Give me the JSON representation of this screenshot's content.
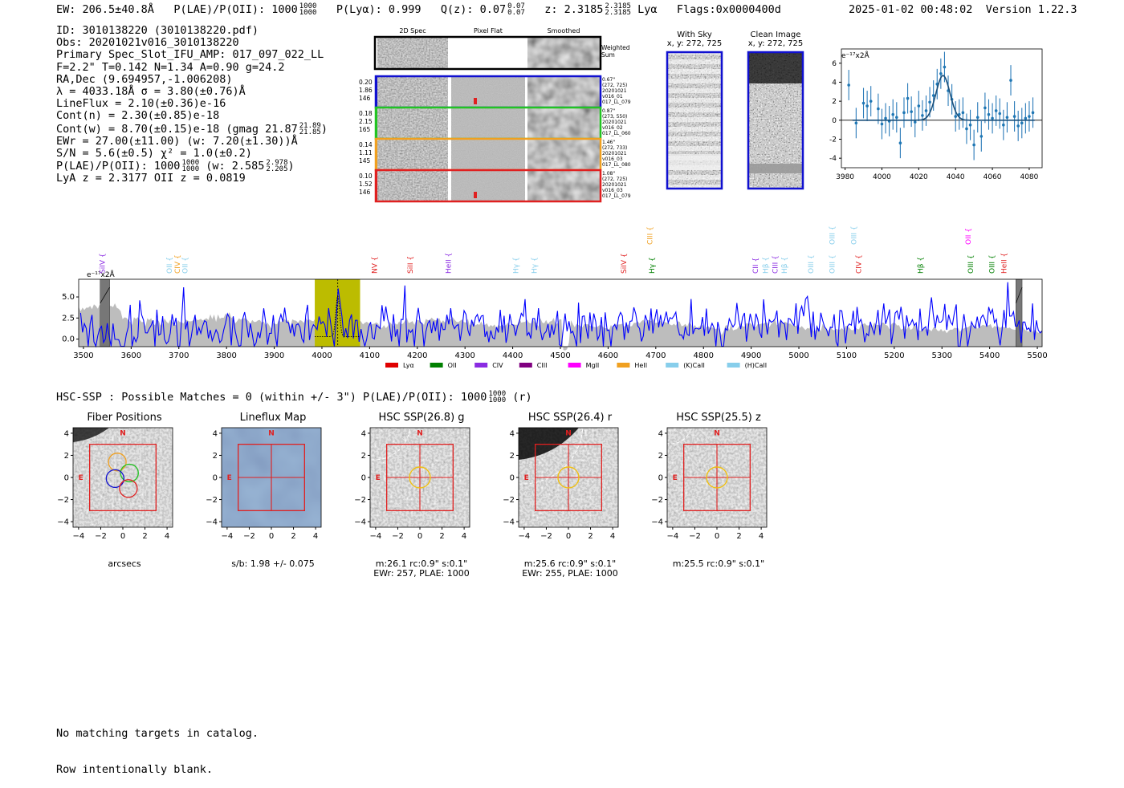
{
  "header": {
    "ew": "EW: 206.5±40.8Å",
    "plae_label": "P(LAE)/P(OII): 1000",
    "plae_sup_hi": "1000",
    "plae_sup_lo": "1000",
    "plya": "P(Lyα): 0.999",
    "qz_label": "Q(z): 0.07",
    "qz_sup_hi": "0.07",
    "qz_sup_lo": "0.07",
    "z_label": "z: 2.3185",
    "z_sup_hi": "2.3185",
    "z_sup_lo": "2.3185",
    "line": "Lyα",
    "flags": "Flags:0x0000400d",
    "timestamp": "2025-01-02 00:48:02",
    "version": "Version 1.22.3"
  },
  "info": {
    "id": "ID: 3010138220 (3010138220.pdf)",
    "obs": "Obs: 20201021v016_3010138220",
    "primary": "Primary Spec_Slot_IFU_AMP: 017_097_022_LL",
    "fit": "F=2.2\"  T=0.142  N=1.34  A=0.90  g=24.2",
    "radec": "RA,Dec (9.694957,-1.006208)",
    "lambda": "λ = 4033.18Å  σ = 3.80(±0.76)Å",
    "lineflux": "LineFlux = 2.10(±0.36)e-16",
    "contn": "Cont(n) = 2.30(±0.85)e-18",
    "contw": "Cont(w) = 8.70(±0.15)e-18 (gmag 21.87",
    "contw_hi": "21.89",
    "contw_lo": "21.85",
    "contw_end": ")",
    "ewr": "EWr = 27.00(±11.00) (w: 7.20(±1.30))Å",
    "sn": "S/N = 5.6(±0.5)  χ² = 1.0(±0.2)",
    "plae": "P(LAE)/P(OII): 1000",
    "plae_hi": "1000",
    "plae_lo": "1000",
    "plae_w": "(w: 2.585",
    "plae_w_hi": "2.978",
    "plae_w_lo": "2.205",
    "plae_end": ")",
    "lyaz": "LyA z = 2.3177  OII z = 0.0819"
  },
  "stamps": {
    "col_2d": "2D Spec",
    "col_flat": "Pixel Flat",
    "col_smooth": "Smoothed",
    "weighted": "Weighted Sum",
    "rows": [
      {
        "color": "#1010d0",
        "left": [
          "0.20",
          "1.86",
          "146"
        ],
        "right": [
          "0.67\"",
          "(272, 725)",
          "20201021",
          "v016_01",
          "017_LL_079"
        ]
      },
      {
        "color": "#22c422",
        "left": [
          "0.18",
          "2.15",
          "165"
        ],
        "right": [
          "0.87\"",
          "(273, 550)",
          "20201021",
          "v016_02",
          "017_LL_060"
        ]
      },
      {
        "color": "#f0a020",
        "left": [
          "0.14",
          "1.11",
          "145"
        ],
        "right": [
          "1.46\"",
          "(272, 733)",
          "20201021",
          "v016_03",
          "017_LL_080"
        ]
      },
      {
        "color": "#e02020",
        "left": [
          "0.10",
          "1.52",
          "146"
        ],
        "right": [
          "1.08\"",
          "(272, 725)",
          "20201021",
          "v016_03",
          "017_LL_079"
        ]
      }
    ]
  },
  "cutouts": {
    "with_sky": "With Sky",
    "with_sky_xy": "x, y: 272, 725",
    "clean": "Clean Image",
    "clean_xy": "x, y: 272, 725"
  },
  "zoom_plot": {
    "unit": "e⁻¹⁷x2Å"
  },
  "spectrum": {
    "unit": "e⁻¹⁷x2Å",
    "line_labels": [
      {
        "text": "SiIV",
        "wl": 3545,
        "color": "#8a2be2",
        "row": 1
      },
      {
        "text": "OII",
        "wl": 3685,
        "color": "#87ceeb",
        "row": 1
      },
      {
        "text": "CIV",
        "wl": 3702,
        "color": "#f0a020",
        "row": 1
      },
      {
        "text": "OII",
        "wl": 3718,
        "color": "#87ceeb",
        "row": 1
      },
      {
        "text": "NV",
        "wl": 4115,
        "color": "#e02020",
        "row": 1
      },
      {
        "text": "SiII",
        "wl": 4190,
        "color": "#e02020",
        "row": 1
      },
      {
        "text": "HeII",
        "wl": 4270,
        "color": "#8a2be2",
        "row": 1
      },
      {
        "text": "Hγ",
        "wl": 4412,
        "color": "#87ceeb",
        "row": 1
      },
      {
        "text": "Hγ",
        "wl": 4450,
        "color": "#87ceeb",
        "row": 1
      },
      {
        "text": "SiIV",
        "wl": 4638,
        "color": "#e02020",
        "row": 1
      },
      {
        "text": "CIII",
        "wl": 4693,
        "color": "#f0a020",
        "row": 0
      },
      {
        "text": "Hγ",
        "wl": 4697,
        "color": "#008000",
        "row": 1
      },
      {
        "text": "CII",
        "wl": 4914,
        "color": "#8a2be2",
        "row": 1
      },
      {
        "text": "Hβ",
        "wl": 4935,
        "color": "#87ceeb",
        "row": 1
      },
      {
        "text": "CIII",
        "wl": 4955,
        "color": "#8a2be2",
        "row": 1
      },
      {
        "text": "Hβ",
        "wl": 4975,
        "color": "#87ceeb",
        "row": 1
      },
      {
        "text": "OIII",
        "wl": 5030,
        "color": "#87ceeb",
        "row": 1
      },
      {
        "text": "OIII",
        "wl": 5075,
        "color": "#87ceeb",
        "row": 0
      },
      {
        "text": "OIII",
        "wl": 5075,
        "color": "#87ceeb",
        "row": 1
      },
      {
        "text": "OIII",
        "wl": 5120,
        "color": "#87ceeb",
        "row": 0
      },
      {
        "text": "CIV",
        "wl": 5130,
        "color": "#e02020",
        "row": 1
      },
      {
        "text": "Hβ",
        "wl": 5260,
        "color": "#008000",
        "row": 1
      },
      {
        "text": "OII",
        "wl": 5360,
        "color": "#ff00ff",
        "row": 0
      },
      {
        "text": "OIII",
        "wl": 5365,
        "color": "#008000",
        "row": 1
      },
      {
        "text": "OIII",
        "wl": 5410,
        "color": "#008000",
        "row": 1
      },
      {
        "text": "HeII",
        "wl": 5435,
        "color": "#e02020",
        "row": 1
      }
    ],
    "legend": [
      {
        "label": "Lyα",
        "color": "#e00000"
      },
      {
        "label": "OII",
        "color": "#008000"
      },
      {
        "label": "CIV",
        "color": "#8a2be2"
      },
      {
        "label": "CIII",
        "color": "#800080"
      },
      {
        "label": "MgII",
        "color": "#ff00ff"
      },
      {
        "label": "HeII",
        "color": "#f0a020"
      },
      {
        "label": "(K)CaII",
        "color": "#87ceeb"
      },
      {
        "label": "(H)CaII",
        "color": "#87ceeb"
      }
    ]
  },
  "hsc": {
    "summary": "HSC-SSP : Possible Matches = 0 (within +/- 3\")  P(LAE)/P(OII): 1000",
    "summary_hi": "1000",
    "summary_lo": "1000",
    "summary_end": "(r)",
    "panels": [
      {
        "title": "Fiber Positions",
        "caption1": "arcsecs",
        "caption2": ""
      },
      {
        "title": "Lineflux Map",
        "caption1": "s/b: 1.98 +/- 0.075",
        "caption2": ""
      },
      {
        "title": "HSC SSP(26.8) g",
        "caption1": "m:26.1 rc:0.9\"  s:0.1\"",
        "caption2": "EWr: 257, PLAE: 1000"
      },
      {
        "title": "HSC SSP(26.4) r",
        "caption1": "m:25.6 rc:0.9\"  s:0.1\"",
        "caption2": "EWr: 255, PLAE: 1000"
      },
      {
        "title": "HSC SSP(25.5) z",
        "caption1": "m:25.5 rc:0.9\"  s:0.1\"",
        "caption2": ""
      }
    ],
    "compass_n": "N",
    "compass_e": "E"
  },
  "footer": {
    "line1": "No matching targets in catalog.",
    "line2": "Row intentionally blank."
  },
  "chart_data": [
    {
      "type": "scatter",
      "title": "",
      "ylabel": "e⁻¹⁷x2Å",
      "xlim": [
        3978,
        4087
      ],
      "ylim": [
        -5,
        7.5
      ],
      "xticks": [
        3980,
        4000,
        4020,
        4040,
        4060,
        4080
      ],
      "yticks": [
        -4,
        -2,
        0,
        2,
        4,
        6
      ],
      "x": [
        3982,
        3986,
        3990,
        3992,
        3994,
        3998,
        4000,
        4002,
        4004,
        4006,
        4008,
        4010,
        4012,
        4014,
        4016,
        4018,
        4020,
        4022,
        4024,
        4026,
        4028,
        4030,
        4032,
        4034,
        4036,
        4038,
        4040,
        4042,
        4044,
        4046,
        4048,
        4050,
        4052,
        4054,
        4056,
        4058,
        4060,
        4062,
        4064,
        4066,
        4068,
        4070,
        4072,
        4074,
        4076,
        4078,
        4080,
        4082
      ],
      "y": [
        3.7,
        -0.3,
        1.8,
        1.5,
        2.0,
        1.2,
        -0.4,
        0.2,
        -0.1,
        0.6,
        0.3,
        -2.4,
        0.8,
        2.3,
        0.9,
        -0.2,
        1.5,
        0.5,
        1.0,
        1.9,
        2.6,
        3.8,
        4.9,
        5.6,
        3.1,
        2.2,
        0.4,
        0.6,
        0.8,
        -0.9,
        -0.5,
        -2.6,
        0.3,
        -1.7,
        1.3,
        0.6,
        0.2,
        1.0,
        0.7,
        -0.5,
        0.3,
        4.2,
        0.4,
        -0.6,
        -0.3,
        0.2,
        0.4,
        0.8
      ],
      "yerr": [
        1.6,
        1.6,
        1.6,
        1.6,
        1.6,
        1.6,
        1.6,
        1.6,
        1.6,
        1.6,
        1.6,
        1.6,
        1.6,
        1.6,
        1.6,
        1.6,
        1.6,
        1.6,
        1.6,
        1.6,
        1.6,
        1.6,
        1.6,
        1.6,
        1.6,
        1.6,
        1.6,
        1.6,
        1.6,
        1.6,
        1.6,
        1.6,
        1.6,
        1.6,
        1.6,
        1.6,
        1.6,
        1.6,
        1.6,
        1.6,
        1.6,
        1.6,
        1.6,
        1.6,
        1.6,
        1.6,
        1.6,
        1.6
      ],
      "fit": {
        "center": 4033.18,
        "sigma": 3.8,
        "amplitude": 4.7,
        "baseline": 0.0
      }
    },
    {
      "type": "line",
      "title": "",
      "ylabel": "e⁻¹⁷x2Å",
      "xlim": [
        3490,
        5510
      ],
      "ylim": [
        -0.9,
        7.1
      ],
      "xticks": [
        3500,
        3600,
        3700,
        3800,
        3900,
        4000,
        4100,
        4200,
        4300,
        4400,
        4500,
        4600,
        4700,
        4800,
        4900,
        5000,
        5100,
        5200,
        5300,
        5400,
        5500
      ],
      "yticks": [
        0.0,
        2.5,
        5.0
      ],
      "highlight_range": [
        3985,
        4080
      ],
      "line_center": 4033.18,
      "masked_ranges": [
        [
          3535,
          3555
        ],
        [
          5455,
          5468
        ]
      ],
      "series": [
        {
          "name": "spectrum",
          "color": "#0000ff",
          "generator": "noisy",
          "mean_start": 0.8,
          "mean_end": 2.1,
          "noise": 1.4
        },
        {
          "name": "sky/error",
          "color": "#bdbdbd",
          "generator": "envelope",
          "mean_start": 2.4,
          "mean_end": 1.2
        }
      ]
    }
  ]
}
